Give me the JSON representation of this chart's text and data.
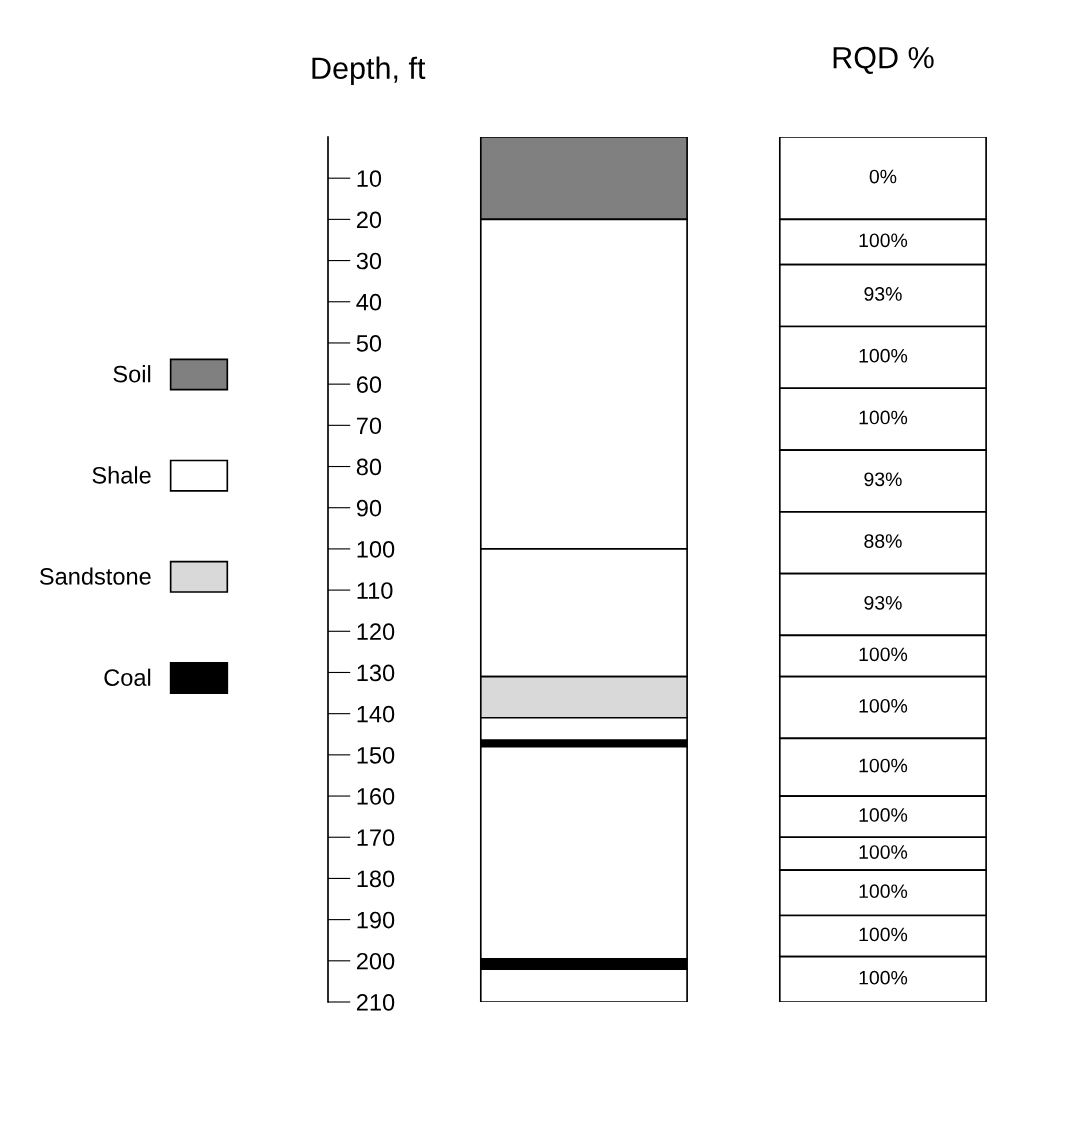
{
  "chart_data": {
    "type": "bar",
    "stacked": true,
    "ylabel": "Depth, ft",
    "categories": [
      null,
      "RQD %"
    ],
    "ylim": [
      210,
      0
    ],
    "yticks": [
      10,
      20,
      30,
      40,
      50,
      60,
      70,
      80,
      90,
      100,
      110,
      120,
      130,
      140,
      150,
      160,
      170,
      180,
      190,
      200,
      210
    ],
    "legend": "left",
    "grid": false,
    "series": [
      {
        "name": "Soil",
        "color": "#808080",
        "values": [
          20,
          null
        ]
      },
      {
        "name": "Shale",
        "color": "#ffffff",
        "values": [
          80,
          null
        ]
      },
      {
        "color": "#ffffff",
        "values": [
          31,
          null
        ]
      },
      {
        "name": "Sandstone",
        "color": "#d9d9d9",
        "values": [
          10,
          null
        ]
      },
      {
        "color": "#ffffff",
        "values": [
          5.5,
          null
        ]
      },
      {
        "name": "Coal",
        "color": "#000000",
        "values": [
          1.5,
          null
        ]
      },
      {
        "color": "#ffffff",
        "values": [
          51.5,
          null
        ]
      },
      {
        "color": "#000000",
        "values": [
          2.5,
          null
        ]
      },
      {
        "color": "#ffffff",
        "values": [
          8,
          null
        ]
      },
      {
        "color": "#ffffff",
        "values": [
          null,
          20
        ]
      },
      {
        "color": "#ffffff",
        "values": [
          null,
          11
        ]
      },
      {
        "color": "#ffffff",
        "values": [
          null,
          15
        ]
      },
      {
        "color": "#ffffff",
        "values": [
          null,
          15
        ]
      },
      {
        "color": "#ffffff",
        "values": [
          null,
          15
        ]
      },
      {
        "color": "#ffffff",
        "values": [
          null,
          15
        ]
      },
      {
        "color": "#ffffff",
        "values": [
          null,
          15
        ]
      },
      {
        "color": "#ffffff",
        "values": [
          null,
          15
        ]
      },
      {
        "color": "#ffffff",
        "values": [
          null,
          10
        ]
      },
      {
        "color": "#ffffff",
        "values": [
          null,
          15
        ]
      },
      {
        "color": "#ffffff",
        "values": [
          null,
          14
        ]
      },
      {
        "color": "#ffffff",
        "values": [
          null,
          10
        ]
      },
      {
        "color": "#ffffff",
        "values": [
          null,
          8
        ]
      },
      {
        "color": "#ffffff",
        "values": [
          null,
          11
        ]
      },
      {
        "color": "#ffffff",
        "values": [
          null,
          10
        ]
      },
      {
        "color": "#ffffff",
        "values": [
          null,
          11
        ]
      }
    ],
    "annotations": [
      "0%",
      "100%",
      "93%",
      "100%",
      "100%",
      "93%",
      "88%",
      "93%",
      "100%",
      "100%",
      "100%",
      "100%",
      "100%",
      "100%",
      "100%",
      "100%"
    ]
  }
}
